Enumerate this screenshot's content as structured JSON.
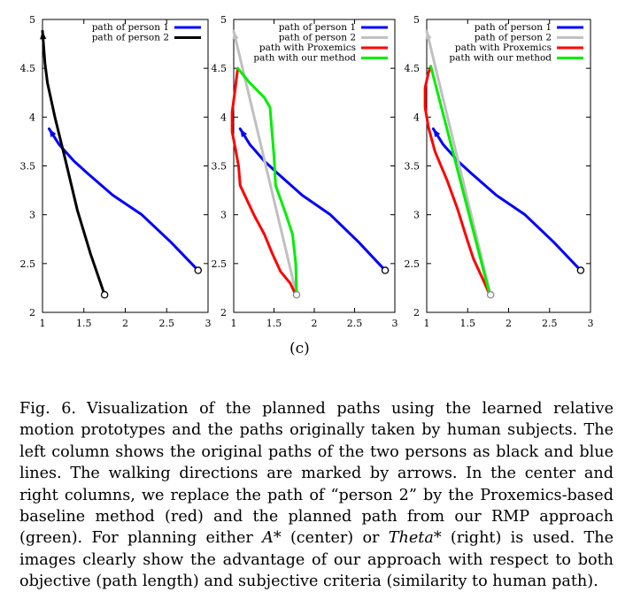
{
  "chart_data": [
    {
      "type": "line",
      "xlim": [
        1,
        3
      ],
      "ylim": [
        2,
        5
      ],
      "xticks": [
        "1",
        "1.5",
        "2",
        "2.5",
        "3"
      ],
      "yticks": [
        "2",
        "2.5",
        "3",
        "3.5",
        "4",
        "4.5",
        "5"
      ],
      "grid": false,
      "legend": "top-right",
      "series": [
        {
          "name": "path of person 1",
          "color": "#0000ff",
          "x": [
            2.88,
            2.55,
            2.2,
            1.85,
            1.55,
            1.38,
            1.2,
            1.08
          ],
          "y": [
            2.43,
            2.72,
            3.0,
            3.2,
            3.42,
            3.55,
            3.72,
            3.88
          ]
        },
        {
          "name": "path of person 2",
          "color": "#000000",
          "x": [
            1.75,
            1.58,
            1.42,
            1.28,
            1.15,
            1.06,
            1.03,
            1.0
          ],
          "y": [
            2.18,
            2.6,
            3.05,
            3.55,
            4.0,
            4.35,
            4.55,
            4.88
          ]
        }
      ]
    },
    {
      "type": "line",
      "xlim": [
        1,
        3
      ],
      "ylim": [
        2,
        5
      ],
      "xticks": [
        "1",
        "1.5",
        "2",
        "2.5",
        "3"
      ],
      "yticks": [
        "2",
        "2.5",
        "3",
        "3.5",
        "4",
        "4.5",
        "5"
      ],
      "grid": false,
      "legend": "top-right",
      "series": [
        {
          "name": "path of person 1",
          "color": "#0000ff",
          "x": [
            2.88,
            2.55,
            2.2,
            1.85,
            1.55,
            1.38,
            1.2,
            1.08
          ],
          "y": [
            2.43,
            2.72,
            3.0,
            3.2,
            3.42,
            3.55,
            3.72,
            3.88
          ]
        },
        {
          "name": "path of person 2",
          "color": "#c0c0c0",
          "x": [
            1.78,
            1.0
          ],
          "y": [
            2.18,
            4.88
          ]
        },
        {
          "name": "path with Proxemics",
          "color": "#ff0000",
          "x": [
            1.77,
            1.7,
            1.58,
            1.48,
            1.38,
            1.25,
            1.08,
            1.06,
            1.02,
            0.98,
            0.98,
            1.02,
            1.05
          ],
          "y": [
            2.18,
            2.3,
            2.42,
            2.6,
            2.8,
            3.0,
            3.3,
            3.5,
            3.68,
            3.85,
            4.05,
            4.3,
            4.5
          ]
        },
        {
          "name": "path with our method",
          "color": "#00ee00",
          "x": [
            1.78,
            1.77,
            1.73,
            1.65,
            1.52,
            1.5,
            1.47,
            1.45,
            1.38,
            1.2,
            1.05
          ],
          "y": [
            2.18,
            2.5,
            2.8,
            3.0,
            3.3,
            3.6,
            3.9,
            4.1,
            4.2,
            4.35,
            4.5
          ]
        }
      ]
    },
    {
      "type": "line",
      "xlim": [
        1,
        3
      ],
      "ylim": [
        2,
        5
      ],
      "xticks": [
        "1",
        "1.5",
        "2",
        "2.5",
        "3"
      ],
      "yticks": [
        "2",
        "2.5",
        "3",
        "3.5",
        "4",
        "4.5",
        "5"
      ],
      "grid": false,
      "legend": "top-right",
      "series": [
        {
          "name": "path of person 1",
          "color": "#0000ff",
          "x": [
            2.88,
            2.55,
            2.2,
            1.85,
            1.55,
            1.38,
            1.2,
            1.08
          ],
          "y": [
            2.43,
            2.72,
            3.0,
            3.2,
            3.42,
            3.55,
            3.72,
            3.88
          ]
        },
        {
          "name": "path of person 2",
          "color": "#c0c0c0",
          "x": [
            1.78,
            1.0
          ],
          "y": [
            2.18,
            4.88
          ]
        },
        {
          "name": "path with Proxemics",
          "color": "#ff0000",
          "x": [
            1.77,
            1.68,
            1.57,
            1.48,
            1.38,
            1.25,
            1.1,
            1.02,
            0.98,
            0.98,
            1.02,
            1.05
          ],
          "y": [
            2.18,
            2.35,
            2.55,
            2.78,
            3.05,
            3.35,
            3.65,
            3.9,
            4.1,
            4.3,
            4.45,
            4.52
          ]
        },
        {
          "name": "path with our method",
          "color": "#00ee00",
          "x": [
            1.77,
            1.05
          ],
          "y": [
            2.18,
            4.52
          ]
        }
      ]
    }
  ],
  "sublabel": "(c)",
  "caption": {
    "lead": "Fig. 6.",
    "p1": "Visualization of the planned paths using the learned relative motion prototypes and the paths originally taken by human subjects. The left column shows the original paths of the two persons as black and blue lines. The walking directions are marked by arrows. In the center and right columns, we replace the path of “person 2” by the Proxemics-based baseline method (red) and the planned path from our RMP approach (green). For planning either ",
    "astar": "A",
    "p2": "* (center) or ",
    "theta": "Theta",
    "p3": "* (right) is used. The images clearly show the advantage of our approach with respect to both objective (path length) and subjective criteria (similarity to human path)."
  }
}
